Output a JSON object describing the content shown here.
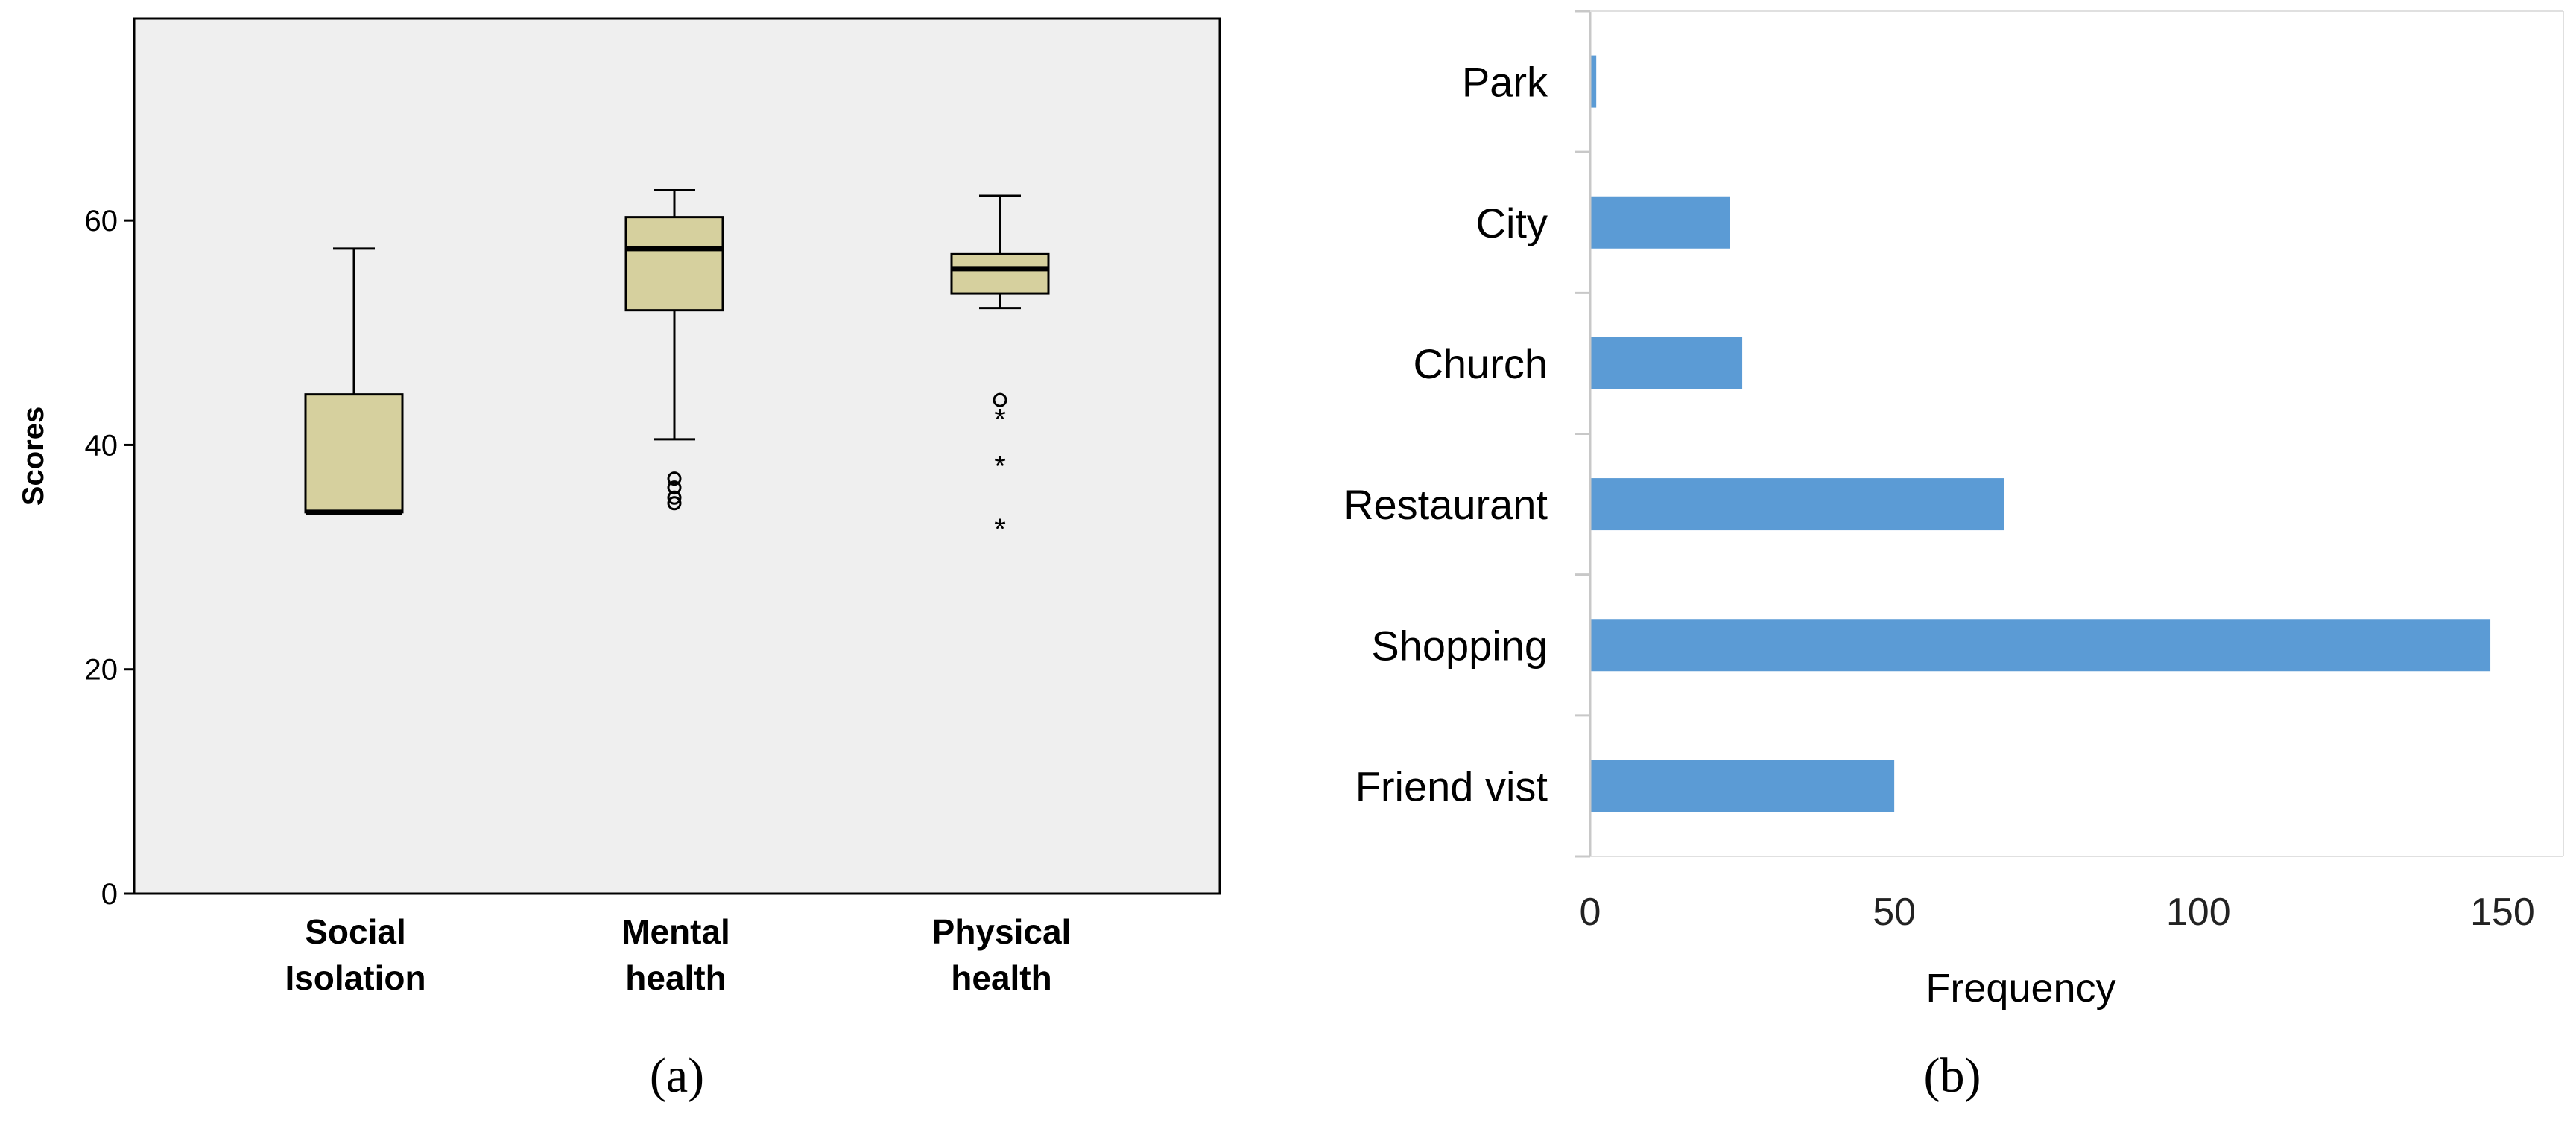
{
  "colors": {
    "plot_bg": "#efefef",
    "box_fill": "#d6d09e",
    "bar_fill": "#5b9bd5",
    "axis": "#000000"
  },
  "chart_data": [
    {
      "type": "box",
      "panel_label": "(a)",
      "ylabel": "Scores",
      "xlabel": "",
      "ylim": [
        0,
        78
      ],
      "yticks": [
        0,
        20,
        40,
        60
      ],
      "grid": false,
      "categories": [
        [
          "Social",
          "Isolation"
        ],
        [
          "Mental",
          "health"
        ],
        [
          "Physical",
          "health"
        ]
      ],
      "boxes": [
        {
          "whisker_low": 34,
          "q1": 34,
          "median": 34,
          "q3": 44.5,
          "whisker_high": 57.5,
          "outliers": [],
          "extremes": []
        },
        {
          "whisker_low": 40.5,
          "q1": 52,
          "median": 57.5,
          "q3": 60.3,
          "whisker_high": 62.7,
          "outliers": [
            37,
            36.2,
            35.3,
            34.8
          ],
          "extremes": []
        },
        {
          "whisker_low": 52.2,
          "q1": 53.5,
          "median": 55.7,
          "q3": 57,
          "whisker_high": 62.2,
          "outliers": [
            44
          ],
          "extremes": [
            42.6,
            38.4,
            32.8
          ]
        }
      ]
    },
    {
      "type": "bar",
      "orientation": "horizontal",
      "panel_label": "(b)",
      "xlabel": "Frequency",
      "ylabel": "",
      "xlim": [
        0,
        160
      ],
      "xticks": [
        0,
        50,
        100,
        150
      ],
      "grid": false,
      "categories": [
        "Park",
        "City",
        "Church",
        "Restaurant",
        "Shopping",
        "Friend vist"
      ],
      "values": [
        1,
        23,
        25,
        68,
        148,
        50
      ]
    }
  ]
}
